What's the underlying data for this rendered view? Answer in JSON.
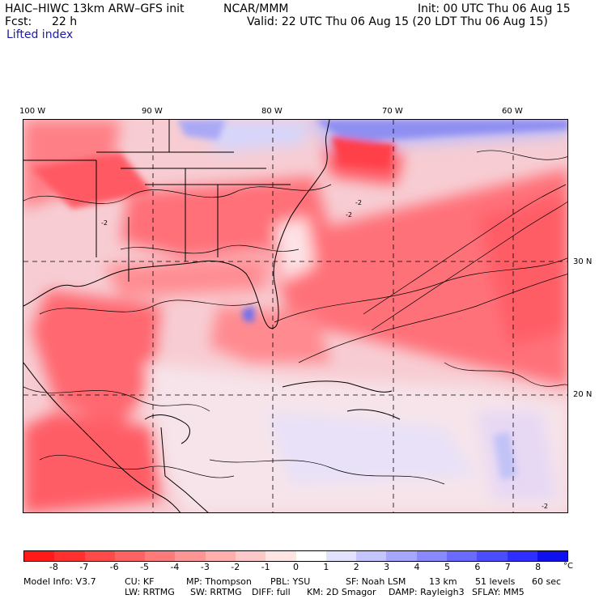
{
  "header": {
    "model": "HAIC–HIWC 13km ARW–GFS init",
    "org": "NCAR/MMM",
    "init": "Init: 00 UTC Thu 06 Aug 15",
    "fcst_label": "Fcst:",
    "fcst_value": "22 h",
    "valid": "Valid: 22 UTC Thu 06 Aug 15 (20 LDT Thu 06 Aug 15)",
    "field": "Lifted index"
  },
  "map": {
    "lon_labels": [
      "100 W",
      "90 W",
      "80 W",
      "70 W",
      "60 W"
    ],
    "lat_labels": [
      "30 N",
      "20 N"
    ],
    "contour_labels": [
      "-2",
      "-2",
      "-2",
      "-2"
    ]
  },
  "colorbar": {
    "unit": "°C",
    "ticks": [
      "-8",
      "-7",
      "-6",
      "-5",
      "-4",
      "-3",
      "-2",
      "-1",
      "0",
      "1",
      "2",
      "3",
      "4",
      "5",
      "6",
      "7",
      "8"
    ],
    "colors": [
      "#ff1a1a",
      "#ff3030",
      "#ff4a4a",
      "#ff6262",
      "#ff7a7a",
      "#ff9494",
      "#ffaeae",
      "#ffc8c8",
      "#ffe4e4",
      "#ffffff",
      "#e2e2ff",
      "#c4c4ff",
      "#a6a6ff",
      "#8888ff",
      "#6a6aff",
      "#4c4cff",
      "#2e2eff",
      "#1010ee"
    ]
  },
  "model_info": {
    "line1": [
      "Model Info: V3.7",
      "CU: KF",
      "MP: Thompson",
      "PBL: YSU",
      "SF: Noah LSM",
      "13 km",
      "51 levels",
      "60 sec"
    ],
    "line2": [
      "LW: RRTMG",
      "SW: RRTMG",
      "DIFF: full",
      "KM: 2D Smagor",
      "DAMP: Rayleigh3",
      "SFLAY: MM5"
    ]
  }
}
